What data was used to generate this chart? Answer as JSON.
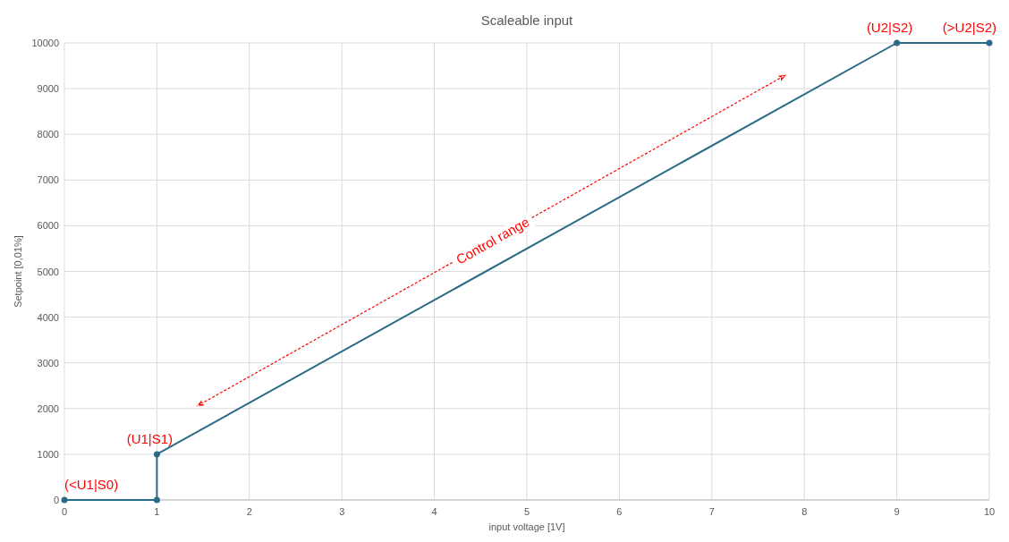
{
  "chart_data": {
    "type": "line",
    "title": "Scaleable input",
    "xlabel": "input voltage  [1V]",
    "ylabel": "Setpoint [0,01%]",
    "x": [
      0,
      1,
      1,
      9,
      10
    ],
    "series": [
      {
        "color": "#2b6a86",
        "values": [
          0,
          0,
          1000,
          10000,
          10000
        ]
      }
    ],
    "xlim": [
      0,
      10
    ],
    "xticks": [
      0,
      1,
      2,
      3,
      4,
      5,
      6,
      7,
      8,
      9,
      10
    ],
    "ylim": [
      0,
      10000
    ],
    "yticks": [
      0,
      1000,
      2000,
      3000,
      4000,
      5000,
      6000,
      7000,
      8000,
      9000,
      10000
    ],
    "grid": true,
    "marker": "circle",
    "line_style": "solid",
    "annotations": [
      {
        "text": "(<U1|S0)",
        "x": 0,
        "y": 0
      },
      {
        "text": "(U1|S1)",
        "x": 1,
        "y": 1000
      },
      {
        "text": "(U2|S2)",
        "x": 9,
        "y": 10000
      },
      {
        "text": "(>U2|S2)",
        "x": 10,
        "y": 10000
      },
      "Control range"
    ]
  }
}
